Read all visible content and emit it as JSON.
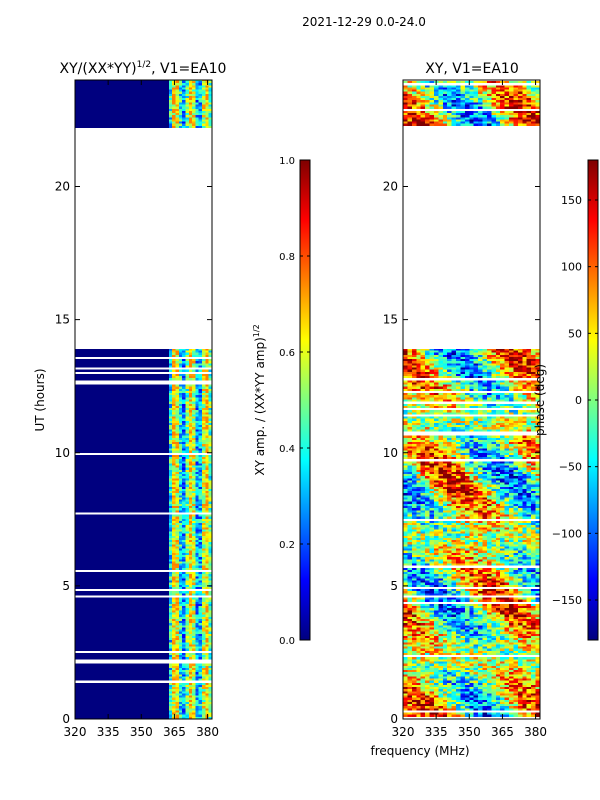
{
  "figure_title": "2021-12-29 0.0-24.0",
  "chart_data": [
    {
      "type": "heatmap",
      "title": "XY/(XX*YY)",
      "title_exponent": "1/2",
      "title_suffix": ", V1=EA10",
      "xlabel": "",
      "ylabel": "UT (hours)",
      "xlim": [
        320,
        382
      ],
      "ylim": [
        0,
        24
      ],
      "xticks": [
        320,
        335,
        350,
        365,
        380
      ],
      "yticks": [
        0,
        5,
        10,
        15,
        20
      ],
      "data_time_ranges": [
        [
          0,
          13.9
        ],
        [
          22.2,
          24
        ]
      ],
      "colorbar": {
        "label": "XY amp. / (XX*YY amp)",
        "label_exponent": "1/2",
        "range": [
          0.0,
          1.0
        ],
        "ticks": [
          "0.0",
          "0.2",
          "0.4",
          "0.6",
          "0.8",
          "1.0"
        ],
        "colormap": "jet"
      }
    },
    {
      "type": "heatmap",
      "title": "XY, V1=EA10",
      "xlabel": "frequency (MHz)",
      "ylabel": "",
      "xlim": [
        320,
        382
      ],
      "ylim": [
        0,
        24
      ],
      "xticks": [
        320,
        335,
        350,
        365,
        380
      ],
      "yticks": [
        0,
        5,
        10,
        15,
        20
      ],
      "data_time_ranges": [
        [
          0,
          13.9
        ],
        [
          22.2,
          24
        ]
      ],
      "colorbar": {
        "label": "phase (deg)",
        "range": [
          -180,
          180
        ],
        "ticks": [
          "−150",
          "−100",
          "−50",
          "0",
          "50",
          "100",
          "150"
        ],
        "tick_values": [
          -150,
          -100,
          -50,
          0,
          50,
          100,
          150
        ],
        "colormap": "jet"
      }
    }
  ]
}
